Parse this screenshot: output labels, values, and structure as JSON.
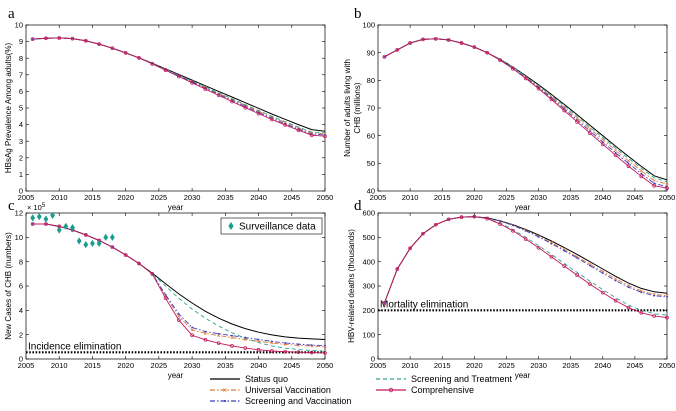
{
  "chart_data": [
    {
      "panel": "a",
      "type": "line",
      "xlabel": "year",
      "ylabel": "HBsAg Prevalence Among adults(%)",
      "xlim": [
        2005,
        2050
      ],
      "ylim": [
        0,
        10
      ],
      "xticks": [
        2005,
        2010,
        2015,
        2020,
        2025,
        2030,
        2035,
        2040,
        2045,
        2050
      ],
      "yticks": [
        0,
        1,
        2,
        3,
        4,
        5,
        6,
        7,
        8,
        9,
        10
      ],
      "x": [
        2006,
        2008,
        2010,
        2012,
        2014,
        2016,
        2018,
        2020,
        2022,
        2024,
        2026,
        2028,
        2030,
        2032,
        2034,
        2036,
        2038,
        2040,
        2042,
        2044,
        2046,
        2048,
        2050
      ],
      "series": [
        {
          "name": "Status quo",
          "values": [
            9.15,
            9.2,
            9.22,
            9.18,
            9.05,
            8.85,
            8.6,
            8.32,
            8.02,
            7.7,
            7.36,
            7.02,
            6.68,
            6.34,
            6.0,
            5.66,
            5.32,
            4.98,
            4.64,
            4.32,
            4.0,
            3.7,
            3.6
          ]
        },
        {
          "name": "Universal Vaccination",
          "values": [
            9.15,
            9.2,
            9.22,
            9.18,
            9.05,
            8.85,
            8.6,
            8.32,
            8.02,
            7.68,
            7.32,
            6.96,
            6.6,
            6.24,
            5.88,
            5.52,
            5.16,
            4.8,
            4.46,
            4.12,
            3.8,
            3.5,
            3.45
          ]
        },
        {
          "name": "Screening and Treatment",
          "values": [
            9.15,
            9.2,
            9.22,
            9.18,
            9.05,
            8.85,
            8.6,
            8.32,
            8.02,
            7.68,
            7.33,
            6.98,
            6.62,
            6.27,
            5.91,
            5.56,
            5.2,
            4.85,
            4.5,
            4.17,
            3.85,
            3.55,
            3.5
          ]
        },
        {
          "name": "Screening and Vaccination",
          "values": [
            9.15,
            9.2,
            9.22,
            9.18,
            9.05,
            8.85,
            8.6,
            8.32,
            8.02,
            7.67,
            7.3,
            6.93,
            6.56,
            6.19,
            5.82,
            5.45,
            5.09,
            4.73,
            4.38,
            4.05,
            3.73,
            3.43,
            3.38
          ]
        },
        {
          "name": "Comprehensive",
          "values": [
            9.15,
            9.2,
            9.22,
            9.18,
            9.05,
            8.85,
            8.6,
            8.32,
            8.02,
            7.66,
            7.28,
            6.9,
            6.52,
            6.14,
            5.76,
            5.39,
            5.02,
            4.66,
            4.31,
            3.98,
            3.66,
            3.36,
            3.3
          ]
        }
      ]
    },
    {
      "panel": "b",
      "type": "line",
      "xlabel": "year",
      "ylabel": "Number of adults living with CHB (millions)",
      "ylabel_lines": [
        "Number of adults living with",
        "CHB (millions)"
      ],
      "xlim": [
        2005,
        2050
      ],
      "ylim": [
        40,
        100
      ],
      "xticks": [
        2005,
        2010,
        2015,
        2020,
        2025,
        2030,
        2035,
        2040,
        2045,
        2050
      ],
      "yticks": [
        40,
        50,
        60,
        70,
        80,
        90,
        100
      ],
      "x": [
        2006,
        2008,
        2010,
        2012,
        2014,
        2016,
        2018,
        2020,
        2022,
        2024,
        2026,
        2028,
        2030,
        2032,
        2034,
        2036,
        2038,
        2040,
        2042,
        2044,
        2046,
        2048,
        2050
      ],
      "series": [
        {
          "name": "Status quo",
          "values": [
            88.5,
            91.0,
            93.5,
            94.8,
            95.0,
            94.6,
            93.5,
            92.0,
            90.0,
            87.6,
            84.8,
            81.7,
            78.4,
            74.9,
            71.3,
            67.6,
            63.8,
            60.0,
            56.2,
            52.5,
            48.9,
            45.5,
            44.0
          ]
        },
        {
          "name": "Universal Vaccination",
          "values": [
            88.5,
            91.0,
            93.5,
            94.8,
            95.0,
            94.6,
            93.5,
            92.0,
            90.0,
            87.5,
            84.6,
            81.3,
            77.8,
            74.1,
            70.3,
            66.4,
            62.5,
            58.6,
            54.7,
            50.9,
            47.3,
            43.8,
            42.5
          ]
        },
        {
          "name": "Screening and Treatment",
          "values": [
            88.5,
            91.0,
            93.5,
            94.8,
            95.0,
            94.6,
            93.5,
            92.0,
            90.0,
            87.5,
            84.7,
            81.5,
            78.1,
            74.5,
            70.8,
            67.0,
            63.1,
            59.3,
            55.5,
            51.8,
            48.2,
            44.8,
            43.3
          ]
        },
        {
          "name": "Screening and Vaccination",
          "values": [
            88.5,
            91.0,
            93.5,
            94.8,
            95.0,
            94.6,
            93.5,
            92.0,
            90.0,
            87.4,
            84.4,
            81.0,
            77.4,
            73.6,
            69.7,
            65.7,
            61.7,
            57.7,
            53.8,
            50.0,
            46.3,
            42.8,
            41.5
          ]
        },
        {
          "name": "Comprehensive",
          "values": [
            88.5,
            91.0,
            93.5,
            94.8,
            95.0,
            94.6,
            93.5,
            92.0,
            90.0,
            87.3,
            84.2,
            80.7,
            77.0,
            73.1,
            69.1,
            65.0,
            60.9,
            56.9,
            52.9,
            49.0,
            45.3,
            41.9,
            41.0
          ]
        }
      ]
    },
    {
      "panel": "c",
      "type": "line",
      "xlabel": "year",
      "ylabel": "New Cases of CHB (numbers)",
      "multiplier": "× 10",
      "multiplier_exp": "5",
      "xlim": [
        2005,
        2050
      ],
      "ylim": [
        0,
        12
      ],
      "xticks": [
        2005,
        2010,
        2015,
        2020,
        2025,
        2030,
        2035,
        2040,
        2045,
        2050
      ],
      "yticks": [
        0,
        2,
        4,
        6,
        8,
        10,
        12
      ],
      "x": [
        2006,
        2008,
        2010,
        2012,
        2014,
        2016,
        2018,
        2020,
        2022,
        2024,
        2026,
        2028,
        2030,
        2032,
        2034,
        2036,
        2038,
        2040,
        2042,
        2044,
        2046,
        2048,
        2050
      ],
      "series": [
        {
          "name": "Status quo",
          "values": [
            11.1,
            11.1,
            10.9,
            10.6,
            10.2,
            9.75,
            9.2,
            8.55,
            7.85,
            7.05,
            6.2,
            5.35,
            4.6,
            3.92,
            3.35,
            2.88,
            2.5,
            2.2,
            1.98,
            1.82,
            1.72,
            1.65,
            1.6
          ]
        },
        {
          "name": "Universal Vaccination",
          "values": [
            11.1,
            11.1,
            10.9,
            10.6,
            10.2,
            9.75,
            9.2,
            8.55,
            7.85,
            7.0,
            5.2,
            3.5,
            2.4,
            2.1,
            1.92,
            1.76,
            1.6,
            1.45,
            1.32,
            1.2,
            1.12,
            1.06,
            1.02
          ]
        },
        {
          "name": "Screening and Treatment",
          "values": [
            11.1,
            11.1,
            10.9,
            10.6,
            10.2,
            9.75,
            9.2,
            8.55,
            7.85,
            7.0,
            6.0,
            5.0,
            4.1,
            3.35,
            2.7,
            2.15,
            1.7,
            1.35,
            1.08,
            0.9,
            0.78,
            0.7,
            0.65
          ]
        },
        {
          "name": "Screening and Vaccination",
          "values": [
            11.1,
            11.1,
            10.9,
            10.6,
            10.2,
            9.75,
            9.2,
            8.55,
            7.85,
            7.0,
            5.3,
            3.7,
            2.6,
            2.25,
            2.08,
            1.92,
            1.76,
            1.6,
            1.45,
            1.32,
            1.22,
            1.14,
            1.1
          ]
        },
        {
          "name": "Comprehensive",
          "values": [
            11.1,
            11.1,
            10.9,
            10.6,
            10.2,
            9.75,
            9.2,
            8.55,
            7.85,
            7.0,
            5.0,
            3.2,
            1.95,
            1.58,
            1.3,
            1.08,
            0.9,
            0.76,
            0.66,
            0.6,
            0.56,
            0.53,
            0.5
          ]
        }
      ],
      "surveillance": {
        "name": "Surveillance data",
        "x": [
          2006,
          2007,
          2008,
          2009,
          2010,
          2011,
          2012,
          2013,
          2014,
          2015,
          2016,
          2017,
          2018
        ],
        "values": [
          11.6,
          11.7,
          11.5,
          11.8,
          10.6,
          10.9,
          10.8,
          9.7,
          9.4,
          9.5,
          9.5,
          10.0,
          10.0
        ]
      },
      "threshold": {
        "value": 0.55,
        "label": "Incidence elimination"
      }
    },
    {
      "panel": "d",
      "type": "line",
      "xlabel": "year",
      "ylabel": "HBV-related deaths (thousands)",
      "xlim": [
        2005,
        2050
      ],
      "ylim": [
        0,
        600
      ],
      "xticks": [
        2005,
        2010,
        2015,
        2020,
        2025,
        2030,
        2035,
        2040,
        2045,
        2050
      ],
      "yticks": [
        0,
        100,
        200,
        300,
        400,
        500,
        600
      ],
      "x": [
        2006,
        2008,
        2010,
        2012,
        2014,
        2016,
        2018,
        2020,
        2022,
        2024,
        2026,
        2028,
        2030,
        2032,
        2034,
        2036,
        2038,
        2040,
        2042,
        2044,
        2046,
        2048,
        2050
      ],
      "series": [
        {
          "name": "Status quo",
          "values": [
            230,
            370,
            455,
            515,
            552,
            574,
            583,
            585,
            580,
            568,
            552,
            532,
            510,
            485,
            458,
            430,
            400,
            370,
            340,
            312,
            290,
            276,
            270
          ]
        },
        {
          "name": "Universal Vaccination",
          "values": [
            230,
            370,
            455,
            515,
            552,
            574,
            583,
            585,
            580,
            567,
            550,
            529,
            505,
            478,
            450,
            420,
            390,
            360,
            330,
            302,
            280,
            266,
            260
          ]
        },
        {
          "name": "Screening and Treatment",
          "values": [
            230,
            370,
            455,
            515,
            552,
            574,
            583,
            585,
            578,
            558,
            532,
            500,
            466,
            430,
            393,
            356,
            320,
            285,
            252,
            222,
            200,
            186,
            180
          ]
        },
        {
          "name": "Screening and Vaccination",
          "values": [
            230,
            370,
            455,
            515,
            552,
            574,
            583,
            585,
            580,
            567,
            549,
            527,
            502,
            474,
            445,
            415,
            384,
            353,
            322,
            295,
            274,
            260,
            255
          ]
        },
        {
          "name": "Comprehensive",
          "values": [
            230,
            370,
            455,
            515,
            552,
            574,
            583,
            585,
            577,
            555,
            527,
            493,
            457,
            420,
            382,
            345,
            308,
            273,
            240,
            211,
            190,
            177,
            170
          ]
        }
      ],
      "threshold": {
        "value": 200,
        "label": "Mortality elimination"
      }
    }
  ],
  "legend": [
    {
      "name": "Status quo",
      "color": "#000000",
      "style": "solid",
      "marker": "none"
    },
    {
      "name": "Screening and Treatment",
      "color": "#2ca58d",
      "style": "dashed",
      "marker": "none"
    },
    {
      "name": "Universal Vaccination",
      "color": "#e07b39",
      "style": "dashdot",
      "marker": "x"
    },
    {
      "name": "Comprehensive",
      "color": "#c2185b",
      "style": "solid",
      "marker": "circle"
    },
    {
      "name": "Screening and Vaccination",
      "color": "#3f3fbf",
      "style": "dashdot",
      "marker": "dot"
    }
  ],
  "colors": {
    "surveillance": "#1a9e8f",
    "threshold": "#000000"
  }
}
